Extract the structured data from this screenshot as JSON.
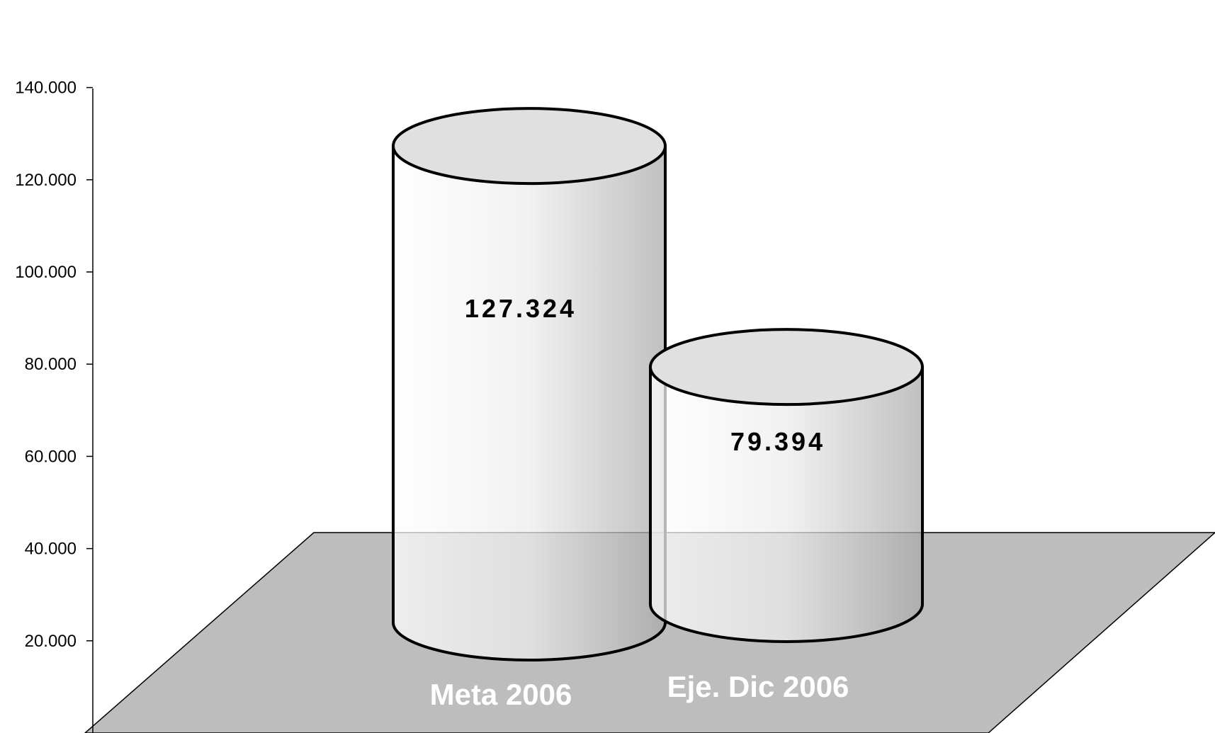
{
  "chart_data": {
    "type": "bar",
    "style": "3d-cylinder",
    "categories": [
      "Meta 2006",
      "Eje. Dic 2006"
    ],
    "values": [
      127324,
      79394
    ],
    "data_labels": [
      "127.324",
      "79.394"
    ],
    "ylim": [
      0,
      140000
    ],
    "y_ticks": [
      {
        "value": 20000,
        "label": "20.000"
      },
      {
        "value": 40000,
        "label": "40.000"
      },
      {
        "value": 60000,
        "label": "60.000"
      },
      {
        "value": 80000,
        "label": "80.000"
      },
      {
        "value": 100000,
        "label": "100.000"
      },
      {
        "value": 120000,
        "label": "120.000"
      },
      {
        "value": 140000,
        "label": "140.000"
      }
    ],
    "grid": false,
    "legend": "none",
    "colors": {
      "floor": "#bdbdbd",
      "cylinder_light": "#ffffff",
      "cylinder_dark": "#a8a8a8",
      "cylinder_top": "#e0e0e0",
      "outline": "#000000",
      "category_text": "#ffffff"
    }
  }
}
